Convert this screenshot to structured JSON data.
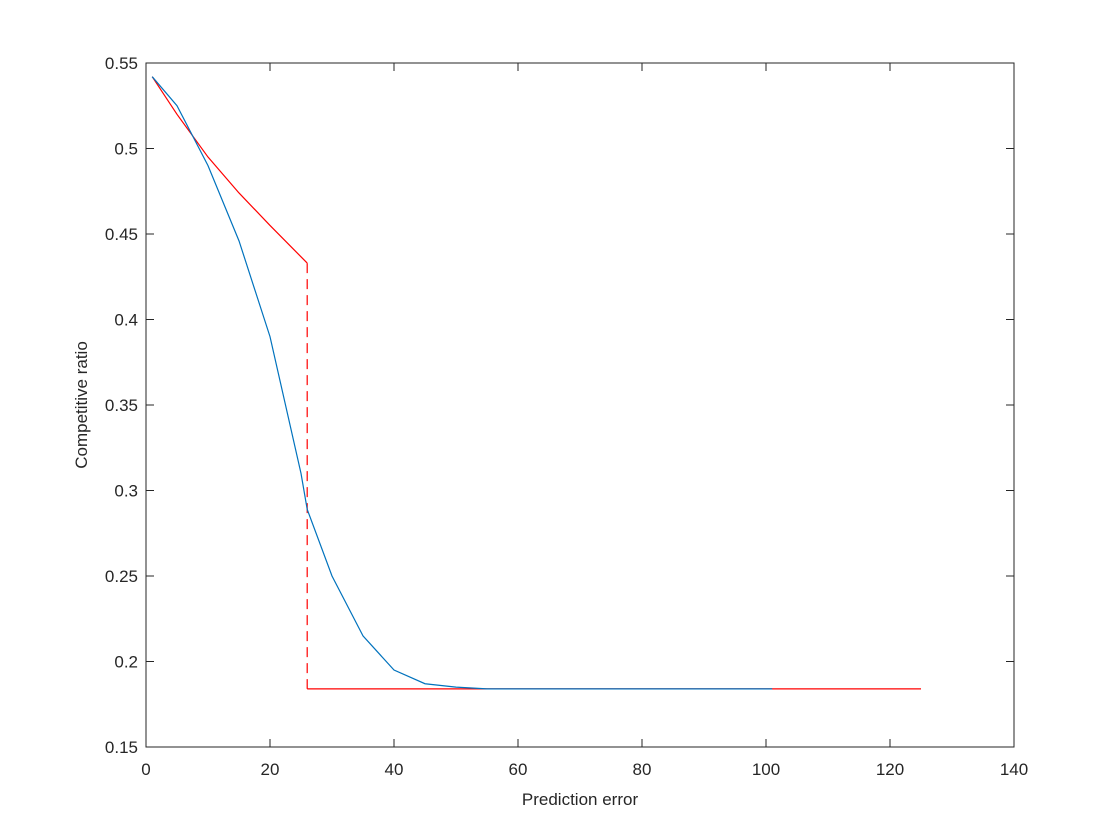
{
  "chart_data": {
    "type": "line",
    "xlabel": "Prediction error",
    "ylabel": "Competitive ratio",
    "xlim": [
      0,
      140
    ],
    "ylim": [
      0.15,
      0.55
    ],
    "xticks": [
      0,
      20,
      40,
      60,
      80,
      100,
      120,
      140
    ],
    "yticks": [
      0.15,
      0.2,
      0.25,
      0.3,
      0.35,
      0.4,
      0.45,
      0.5,
      0.55
    ],
    "box": true,
    "series": [
      {
        "color": "#ff0000",
        "dashed": false,
        "x": [
          1,
          5,
          10,
          15,
          20,
          26
        ],
        "values": [
          0.542,
          0.52,
          0.495,
          0.474,
          0.455,
          0.433
        ]
      },
      {
        "color": "#ff0000",
        "dashed": true,
        "x": [
          26,
          26
        ],
        "values": [
          0.433,
          0.184
        ]
      },
      {
        "color": "#ff0000",
        "dashed": false,
        "x": [
          26,
          125
        ],
        "values": [
          0.184,
          0.184
        ]
      },
      {
        "color": "#0072bd",
        "dashed": false,
        "x": [
          1,
          5,
          10,
          15,
          20,
          25,
          26,
          30,
          35,
          40,
          45,
          50,
          55,
          60,
          80,
          101
        ],
        "values": [
          0.542,
          0.525,
          0.49,
          0.446,
          0.39,
          0.31,
          0.289,
          0.25,
          0.215,
          0.195,
          0.187,
          0.185,
          0.184,
          0.184,
          0.184,
          0.184
        ]
      }
    ]
  }
}
